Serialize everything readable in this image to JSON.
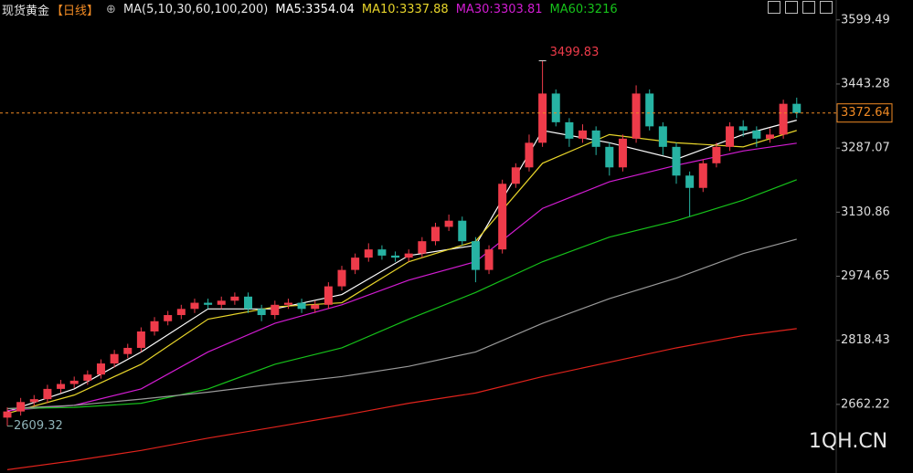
{
  "chart_data": {
    "type": "candlestick",
    "title": "现货黄金",
    "period": "【日线】",
    "ma_label": "MA(5,10,30,60,100,200)",
    "watermark": "1QH.CN",
    "up_color": "#ee3b4a",
    "down_color": "#27b3a3",
    "last_line_color": "#f08a24",
    "ylim": [
      2495,
      3648
    ],
    "yticks": [
      2662.22,
      2818.43,
      2974.65,
      3130.86,
      3287.07,
      3443.28,
      3599.49
    ],
    "open": [
      2630,
      2645,
      2668,
      2675,
      2700,
      2712,
      2720,
      2735,
      2762,
      2785,
      2800,
      2840,
      2865,
      2880,
      2895,
      2910,
      2905,
      2915,
      2925,
      2895,
      2880,
      2905,
      2910,
      2895,
      2905,
      2950,
      2990,
      3020,
      3040,
      3025,
      3020,
      3030,
      3060,
      3095,
      3110,
      3060,
      2990,
      3040,
      3200,
      3240,
      3300,
      3420,
      3350,
      3310,
      3330,
      3290,
      3240,
      3310,
      3420,
      3340,
      3290,
      3220,
      3190,
      3250,
      3290,
      3340,
      3330,
      3310,
      3320,
      3395
    ],
    "high": [
      2655,
      2678,
      2685,
      2710,
      2722,
      2730,
      2745,
      2772,
      2795,
      2810,
      2850,
      2875,
      2890,
      2905,
      2920,
      2920,
      2925,
      2935,
      2935,
      2905,
      2915,
      2920,
      2920,
      2915,
      2960,
      3000,
      3030,
      3055,
      3050,
      3035,
      3040,
      3070,
      3105,
      3125,
      3120,
      3070,
      3050,
      3210,
      3250,
      3320,
      3499.83,
      3430,
      3360,
      3345,
      3340,
      3300,
      3320,
      3440,
      3430,
      3350,
      3300,
      3230,
      3260,
      3300,
      3350,
      3355,
      3340,
      3335,
      3405,
      3410
    ],
    "low": [
      2609.32,
      2635,
      2658,
      2665,
      2690,
      2702,
      2710,
      2725,
      2752,
      2775,
      2790,
      2830,
      2855,
      2870,
      2885,
      2895,
      2895,
      2905,
      2885,
      2865,
      2870,
      2895,
      2885,
      2885,
      2895,
      2940,
      2980,
      3010,
      3015,
      3010,
      3010,
      3020,
      3050,
      3085,
      3050,
      2960,
      2980,
      3030,
      3190,
      3230,
      3290,
      3340,
      3290,
      3300,
      3270,
      3220,
      3230,
      3300,
      3330,
      3270,
      3200,
      3120,
      3180,
      3240,
      3280,
      3315,
      3290,
      3300,
      3310,
      3360
    ],
    "close": [
      2645,
      2668,
      2675,
      2700,
      2712,
      2720,
      2735,
      2762,
      2785,
      2800,
      2840,
      2865,
      2880,
      2895,
      2910,
      2905,
      2915,
      2925,
      2895,
      2880,
      2905,
      2910,
      2895,
      2905,
      2950,
      2990,
      3020,
      3040,
      3025,
      3020,
      3030,
      3060,
      3095,
      3110,
      3060,
      2990,
      3040,
      3200,
      3240,
      3300,
      3420,
      3350,
      3310,
      3330,
      3290,
      3240,
      3310,
      3420,
      3340,
      3290,
      3220,
      3190,
      3250,
      3290,
      3340,
      3330,
      3310,
      3320,
      3395,
      3372.64
    ],
    "ma_series": [
      {
        "name": "MA5:3354.04",
        "color": "#ffffff",
        "x": [
          0,
          5,
          10,
          15,
          20,
          25,
          30,
          35,
          40,
          45,
          50,
          55,
          59
        ],
        "values": [
          2645,
          2700,
          2790,
          2895,
          2895,
          2930,
          3025,
          3050,
          3330,
          3300,
          3260,
          3320,
          3355
        ]
      },
      {
        "name": "MA10:3337.88",
        "color": "#e8d52a",
        "x": [
          0,
          5,
          10,
          15,
          20,
          25,
          30,
          35,
          40,
          45,
          50,
          55,
          59
        ],
        "values": [
          2640,
          2685,
          2760,
          2870,
          2900,
          2910,
          3010,
          3060,
          3250,
          3320,
          3300,
          3290,
          3330
        ]
      },
      {
        "name": "MA30:3303.81",
        "color": "#d21cd2",
        "x": [
          0,
          5,
          10,
          15,
          20,
          25,
          30,
          35,
          40,
          45,
          50,
          55,
          59
        ],
        "values": [
          2647,
          2660,
          2700,
          2790,
          2860,
          2905,
          2965,
          3010,
          3140,
          3205,
          3245,
          3280,
          3299
        ]
      },
      {
        "name": "MA60:3216",
        "color": "#16c21a",
        "x": [
          0,
          5,
          10,
          15,
          20,
          25,
          30,
          35,
          40,
          45,
          50,
          55,
          59
        ],
        "values": [
          2652,
          2655,
          2665,
          2700,
          2760,
          2800,
          2870,
          2935,
          3010,
          3070,
          3110,
          3160,
          3210
        ]
      },
      {
        "color": "#9a9a9a",
        "x": [
          0,
          5,
          10,
          15,
          20,
          25,
          30,
          35,
          40,
          45,
          50,
          55,
          59
        ],
        "values": [
          2652,
          2660,
          2675,
          2692,
          2712,
          2730,
          2755,
          2790,
          2860,
          2920,
          2970,
          3030,
          3065
        ]
      },
      {
        "color": "#e0231c",
        "x": [
          0,
          5,
          10,
          15,
          20,
          25,
          30,
          35,
          40,
          45,
          50,
          55,
          59
        ],
        "values": [
          2503,
          2525,
          2550,
          2580,
          2607,
          2635,
          2665,
          2690,
          2730,
          2765,
          2800,
          2830,
          2847
        ]
      }
    ]
  }
}
